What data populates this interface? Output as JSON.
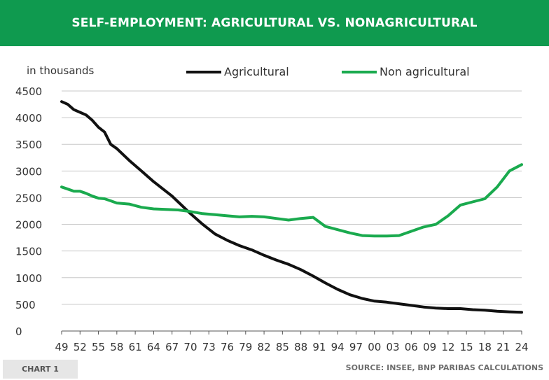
{
  "header": {
    "title": "SELF-EMPLOYMENT: AGRICULTURAL VS. NONAGRICULTURAL"
  },
  "footer": {
    "chart_label": "CHART 1",
    "source": "SOURCE: INSEE, BNP PARIBAS CALCULATIONS"
  },
  "colors": {
    "title_bg": "#0f9a4f",
    "agricultural": "#111111",
    "non_agricultural": "#1aaa4e",
    "grid": "#c8c8c8"
  },
  "chart_data": {
    "type": "line",
    "title": "SELF-EMPLOYMENT: AGRICULTURAL VS. NONAGRICULTURAL",
    "ylabel": "in thousands",
    "xlabel": "",
    "ylim": [
      0,
      4500
    ],
    "yticks": [
      0,
      500,
      1000,
      1500,
      2000,
      2500,
      3000,
      3500,
      4000,
      4500
    ],
    "xlim": [
      1949,
      2024
    ],
    "xtick_years": [
      1949,
      1952,
      1955,
      1958,
      1961,
      1964,
      1967,
      1970,
      1973,
      1976,
      1979,
      1982,
      1985,
      1988,
      1991,
      1994,
      1997,
      2000,
      2003,
      2006,
      2009,
      2012,
      2015,
      2018,
      2021,
      2024
    ],
    "xtick_labels": [
      "49",
      "52",
      "55",
      "58",
      "61",
      "64",
      "67",
      "70",
      "73",
      "76",
      "79",
      "82",
      "85",
      "88",
      "91",
      "94",
      "97",
      "00",
      "03",
      "06",
      "09",
      "12",
      "15",
      "18",
      "21",
      "24"
    ],
    "legend_position": "top",
    "grid": "horizontal",
    "series": [
      {
        "name": "Agricultural",
        "x": [
          1949,
          1950,
          1951,
          1952,
          1953,
          1954,
          1955,
          1956,
          1957,
          1958,
          1960,
          1962,
          1964,
          1966,
          1967,
          1968,
          1970,
          1972,
          1974,
          1976,
          1978,
          1980,
          1982,
          1984,
          1986,
          1988,
          1990,
          1992,
          1994,
          1996,
          1998,
          2000,
          2002,
          2004,
          2006,
          2008,
          2010,
          2012,
          2014,
          2016,
          2018,
          2020,
          2022,
          2024
        ],
        "values": [
          4300,
          4250,
          4150,
          4100,
          4050,
          3950,
          3820,
          3730,
          3500,
          3420,
          3200,
          3000,
          2800,
          2620,
          2530,
          2420,
          2200,
          2000,
          1820,
          1700,
          1600,
          1520,
          1420,
          1330,
          1250,
          1150,
          1030,
          900,
          780,
          680,
          610,
          560,
          540,
          510,
          480,
          450,
          430,
          420,
          420,
          400,
          390,
          370,
          360,
          350
        ]
      },
      {
        "name": "Non agricultural",
        "x": [
          1949,
          1950,
          1951,
          1952,
          1953,
          1954,
          1955,
          1956,
          1957,
          1958,
          1960,
          1962,
          1964,
          1966,
          1968,
          1970,
          1972,
          1974,
          1976,
          1978,
          1980,
          1982,
          1984,
          1986,
          1988,
          1990,
          1992,
          1994,
          1996,
          1998,
          2000,
          2002,
          2004,
          2006,
          2008,
          2010,
          2012,
          2014,
          2016,
          2018,
          2020,
          2022,
          2024
        ],
        "values": [
          2700,
          2660,
          2620,
          2620,
          2580,
          2530,
          2490,
          2480,
          2440,
          2400,
          2380,
          2320,
          2290,
          2280,
          2270,
          2240,
          2200,
          2180,
          2160,
          2140,
          2150,
          2140,
          2110,
          2080,
          2110,
          2130,
          1960,
          1900,
          1840,
          1790,
          1780,
          1780,
          1790,
          1870,
          1950,
          2000,
          2160,
          2360,
          2420,
          2480,
          2700,
          3000,
          3120
        ]
      }
    ]
  }
}
